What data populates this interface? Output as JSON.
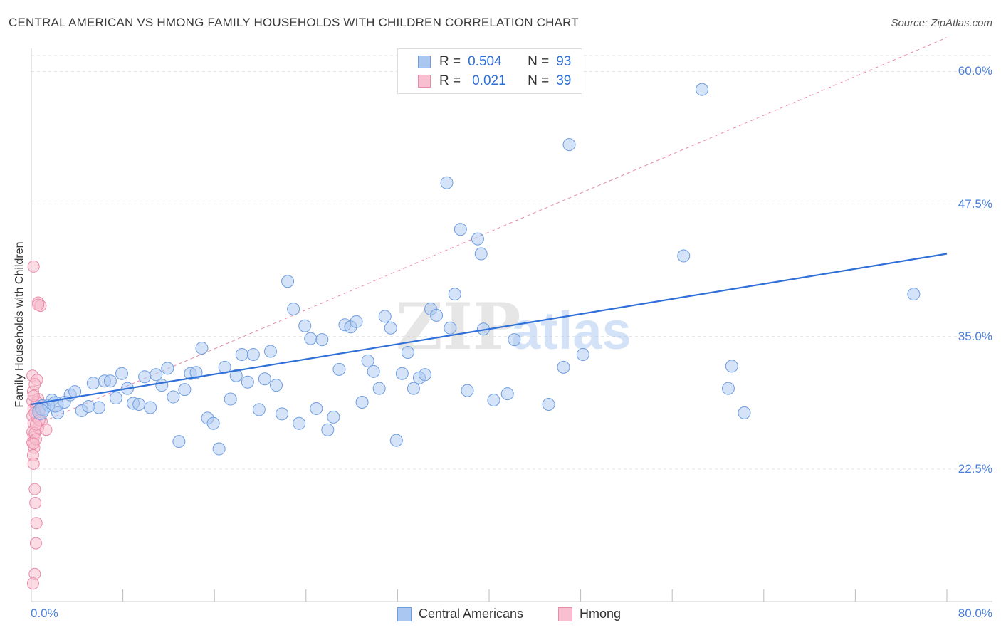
{
  "header": {
    "title": "CENTRAL AMERICAN VS HMONG FAMILY HOUSEHOLDS WITH CHILDREN CORRELATION CHART",
    "source": "Source: ZipAtlas.com"
  },
  "stats": {
    "central": {
      "r_label": "R =",
      "r_value": "0.504",
      "n_label": "N =",
      "n_value": "93"
    },
    "hmong": {
      "r_label": "R =",
      "r_value": "0.021",
      "n_label": "N =",
      "n_value": "39"
    }
  },
  "legend": {
    "central": "Central Americans",
    "hmong": "Hmong"
  },
  "colors": {
    "central_fill": "#a9c7f0",
    "central_stroke": "#6f9de0",
    "central_line": "#2f6fd8",
    "hmong_fill": "#f7bfd0",
    "hmong_stroke": "#e98aa8",
    "hmong_line": "#e88aa6",
    "tick_text": "#4a7fd6",
    "grid": "#e2e2e2"
  },
  "chart_data": {
    "type": "scatter",
    "title": "CENTRAL AMERICAN VS HMONG FAMILY HOUSEHOLDS WITH CHILDREN CORRELATION CHART",
    "xlabel": "",
    "ylabel": "Family Households with Children",
    "xlim": [
      0,
      80
    ],
    "ylim": [
      10,
      61.5
    ],
    "x_tick_labels": [
      "0.0%",
      "80.0%"
    ],
    "y_ticks": [
      22.5,
      35.0,
      47.5,
      60.0
    ],
    "y_tick_labels": [
      "22.5%",
      "35.0%",
      "47.5%",
      "60.0%"
    ],
    "grid": "horizontal dashed",
    "legend_position": "bottom-center",
    "series": [
      {
        "name": "Central Americans",
        "points": [
          [
            1.0,
            28.3
          ],
          [
            1.5,
            28.5
          ],
          [
            1.8,
            29.0
          ],
          [
            2.3,
            27.8
          ],
          [
            2.9,
            28.8
          ],
          [
            3.4,
            29.5
          ],
          [
            3.8,
            29.8
          ],
          [
            4.4,
            28.0
          ],
          [
            5.0,
            28.4
          ],
          [
            5.4,
            30.6
          ],
          [
            5.9,
            28.3
          ],
          [
            6.4,
            30.8
          ],
          [
            6.9,
            30.8
          ],
          [
            7.4,
            29.2
          ],
          [
            7.9,
            31.5
          ],
          [
            8.4,
            30.1
          ],
          [
            8.9,
            28.7
          ],
          [
            9.4,
            28.6
          ],
          [
            9.9,
            31.2
          ],
          [
            10.4,
            28.3
          ],
          [
            10.9,
            31.4
          ],
          [
            11.4,
            30.4
          ],
          [
            11.9,
            32.0
          ],
          [
            12.4,
            29.3
          ],
          [
            12.9,
            25.1
          ],
          [
            13.4,
            30.0
          ],
          [
            13.9,
            31.5
          ],
          [
            14.4,
            31.6
          ],
          [
            14.9,
            33.9
          ],
          [
            15.4,
            27.3
          ],
          [
            15.9,
            26.8
          ],
          [
            16.4,
            24.4
          ],
          [
            16.9,
            32.1
          ],
          [
            17.4,
            29.1
          ],
          [
            17.9,
            31.3
          ],
          [
            18.4,
            33.3
          ],
          [
            18.9,
            30.7
          ],
          [
            19.4,
            33.3
          ],
          [
            19.9,
            28.1
          ],
          [
            20.4,
            31.0
          ],
          [
            20.9,
            33.6
          ],
          [
            21.4,
            30.4
          ],
          [
            21.9,
            27.7
          ],
          [
            22.4,
            40.2
          ],
          [
            22.9,
            37.6
          ],
          [
            23.4,
            26.8
          ],
          [
            23.9,
            36.0
          ],
          [
            24.4,
            34.8
          ],
          [
            24.9,
            28.2
          ],
          [
            25.4,
            34.7
          ],
          [
            25.9,
            26.2
          ],
          [
            26.4,
            27.4
          ],
          [
            26.9,
            31.9
          ],
          [
            27.4,
            36.1
          ],
          [
            27.9,
            35.9
          ],
          [
            28.4,
            36.4
          ],
          [
            28.9,
            28.8
          ],
          [
            29.4,
            32.7
          ],
          [
            29.9,
            31.7
          ],
          [
            30.4,
            30.1
          ],
          [
            30.9,
            36.9
          ],
          [
            31.4,
            35.8
          ],
          [
            31.9,
            25.2
          ],
          [
            32.4,
            31.5
          ],
          [
            32.9,
            33.5
          ],
          [
            33.4,
            30.1
          ],
          [
            33.9,
            31.1
          ],
          [
            34.4,
            31.4
          ],
          [
            34.9,
            37.6
          ],
          [
            35.4,
            37.0
          ],
          [
            36.3,
            49.5
          ],
          [
            36.6,
            35.8
          ],
          [
            37.0,
            39.0
          ],
          [
            37.5,
            45.1
          ],
          [
            38.1,
            29.9
          ],
          [
            39.0,
            44.2
          ],
          [
            39.3,
            42.8
          ],
          [
            39.5,
            35.7
          ],
          [
            40.4,
            29.0
          ],
          [
            41.6,
            29.6
          ],
          [
            42.2,
            34.7
          ],
          [
            45.2,
            28.6
          ],
          [
            46.5,
            32.1
          ],
          [
            47.0,
            53.1
          ],
          [
            48.2,
            33.3
          ],
          [
            57.0,
            42.6
          ],
          [
            58.6,
            58.3
          ],
          [
            60.9,
            30.1
          ],
          [
            61.2,
            32.2
          ],
          [
            62.3,
            27.8
          ],
          [
            77.1,
            39.0
          ],
          [
            0.8,
            27.9
          ],
          [
            2.1,
            28.6
          ]
        ]
      },
      {
        "name": "Hmong",
        "points": [
          [
            0.1,
            31.3
          ],
          [
            0.15,
            29.8
          ],
          [
            0.1,
            28.9
          ],
          [
            0.2,
            28.2
          ],
          [
            0.1,
            27.5
          ],
          [
            0.2,
            26.8
          ],
          [
            0.1,
            26.0
          ],
          [
            0.2,
            25.5
          ],
          [
            0.1,
            25.0
          ],
          [
            0.25,
            24.5
          ],
          [
            0.15,
            23.8
          ],
          [
            0.2,
            23.0
          ],
          [
            0.3,
            20.6
          ],
          [
            0.35,
            19.3
          ],
          [
            0.45,
            17.4
          ],
          [
            0.4,
            15.5
          ],
          [
            0.3,
            12.6
          ],
          [
            0.15,
            11.7
          ],
          [
            0.2,
            41.6
          ],
          [
            0.6,
            38.2
          ],
          [
            0.8,
            37.9
          ],
          [
            0.5,
            30.9
          ],
          [
            0.6,
            29.1
          ],
          [
            0.4,
            28.5
          ],
          [
            0.7,
            28.0
          ],
          [
            0.5,
            27.4
          ],
          [
            0.9,
            27.0
          ],
          [
            0.6,
            26.4
          ],
          [
            1.3,
            26.2
          ],
          [
            0.3,
            25.9
          ],
          [
            0.4,
            25.3
          ],
          [
            0.2,
            24.9
          ],
          [
            0.3,
            27.8
          ],
          [
            0.5,
            28.8
          ],
          [
            0.2,
            29.4
          ],
          [
            0.7,
            27.1
          ],
          [
            0.4,
            26.7
          ],
          [
            0.6,
            38.0
          ],
          [
            0.3,
            30.5
          ]
        ]
      }
    ],
    "trendlines": [
      {
        "series": "Central Americans",
        "style": "solid",
        "x": [
          0,
          80
        ],
        "y": [
          28.6,
          42.8
        ]
      },
      {
        "series": "Hmong",
        "style": "dashed",
        "x": [
          0,
          80
        ],
        "y": [
          26.5,
          63.2
        ]
      }
    ],
    "watermark": "ZIPatlas"
  }
}
